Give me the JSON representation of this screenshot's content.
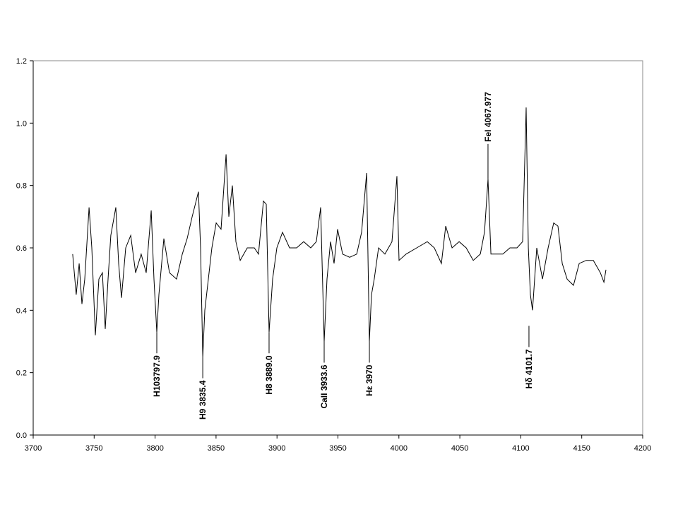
{
  "chart_data": {
    "type": "line",
    "x": [
      3732.4,
      3735.3,
      3737.7,
      3740.0,
      3742.3,
      3745.8,
      3748.1,
      3751.0,
      3753.9,
      3756.8,
      3759.1,
      3761.4,
      3763.7,
      3767.8,
      3770.1,
      3772.4,
      3775.9,
      3780.0,
      3784.0,
      3788.6,
      3792.7,
      3796.8,
      3799.1,
      3801.4,
      3803.1,
      3807.2,
      3811.8,
      3817.6,
      3822.3,
      3826.3,
      3830.4,
      3835.6,
      3837.3,
      3839.1,
      3840.8,
      3843.1,
      3846.6,
      3850.1,
      3854.1,
      3858.2,
      3860.5,
      3863.4,
      3866.3,
      3869.8,
      3875.6,
      3881.4,
      3884.8,
      3888.9,
      3891.2,
      3893.5,
      3896.4,
      3899.9,
      3904.5,
      3910.3,
      3916.1,
      3921.9,
      3927.7,
      3932.3,
      3935.8,
      3938.7,
      3941.0,
      3943.9,
      3946.8,
      3949.7,
      3953.8,
      3959.6,
      3965.4,
      3969.4,
      3973.5,
      3975.8,
      3977.5,
      3979.8,
      3983.3,
      3988.5,
      3994.3,
      3998.4,
      4000.1,
      4005.9,
      4014.6,
      4023.3,
      4029.1,
      4034.9,
      4038.4,
      4043.6,
      4049.4,
      4055.2,
      4061.0,
      4066.8,
      4070.2,
      4073.1,
      4075.5,
      4079.5,
      4085.3,
      4091.1,
      4096.9,
      4101.5,
      4104.4,
      4106.2,
      4107.9,
      4109.6,
      4113.1,
      4117.8,
      4122.4,
      4127.0,
      4130.5,
      4134.0,
      4138.0,
      4143.2,
      4147.9,
      4153.7,
      4159.5,
      4165.3,
      4168.2,
      4169.9
    ],
    "series": [
      {
        "color": "#000000",
        "values": [
          0.58,
          0.45,
          0.55,
          0.42,
          0.5,
          0.73,
          0.6,
          0.32,
          0.5,
          0.52,
          0.34,
          0.5,
          0.64,
          0.73,
          0.55,
          0.44,
          0.6,
          0.64,
          0.52,
          0.58,
          0.52,
          0.72,
          0.5,
          0.33,
          0.45,
          0.63,
          0.52,
          0.5,
          0.58,
          0.63,
          0.7,
          0.78,
          0.6,
          0.25,
          0.4,
          0.48,
          0.6,
          0.68,
          0.66,
          0.9,
          0.7,
          0.8,
          0.62,
          0.56,
          0.6,
          0.6,
          0.58,
          0.75,
          0.74,
          0.33,
          0.5,
          0.6,
          0.65,
          0.6,
          0.6,
          0.62,
          0.6,
          0.62,
          0.73,
          0.3,
          0.5,
          0.62,
          0.55,
          0.66,
          0.58,
          0.57,
          0.58,
          0.65,
          0.84,
          0.3,
          0.45,
          0.5,
          0.6,
          0.58,
          0.62,
          0.83,
          0.56,
          0.58,
          0.6,
          0.62,
          0.6,
          0.55,
          0.67,
          0.6,
          0.62,
          0.6,
          0.56,
          0.58,
          0.65,
          0.82,
          0.58,
          0.58,
          0.58,
          0.6,
          0.6,
          0.62,
          1.05,
          0.6,
          0.45,
          0.4,
          0.6,
          0.5,
          0.6,
          0.68,
          0.67,
          0.55,
          0.5,
          0.48,
          0.55,
          0.56,
          0.56,
          0.52,
          0.49,
          0.53
        ]
      }
    ],
    "xlim": [
      3700,
      4200
    ],
    "xticks": [
      3700,
      3750,
      3800,
      3850,
      3900,
      3950,
      4000,
      4050,
      4100,
      4150,
      4200
    ],
    "ylim": [
      0,
      1.2
    ],
    "yticks": [
      {
        "value": 0,
        "label": "0.0"
      },
      0.2,
      0.4,
      0.6,
      0.8,
      {
        "value": 1,
        "label": "1.0"
      },
      1.2
    ],
    "grid": false,
    "annotations": [
      {
        "text": "H103797.9",
        "x": 3801.4,
        "y": 0.33
      },
      {
        "text": "H9 3835.4",
        "x": 3839.1,
        "y": 0.25
      },
      {
        "text": "H8 3889.0",
        "x": 3893.5,
        "y": 0.33
      },
      {
        "text": "CaII 3933.6",
        "x": 3938.7,
        "y": 0.3
      },
      {
        "text": "Hε 3970",
        "x": 3975.8,
        "y": 0.3
      },
      {
        "text": "FeI 4067.977",
        "x": 4073.1,
        "y": 0.82
      },
      {
        "text": "Hδ 4101.7",
        "x": 4106.7,
        "y": 0.35
      }
    ]
  }
}
